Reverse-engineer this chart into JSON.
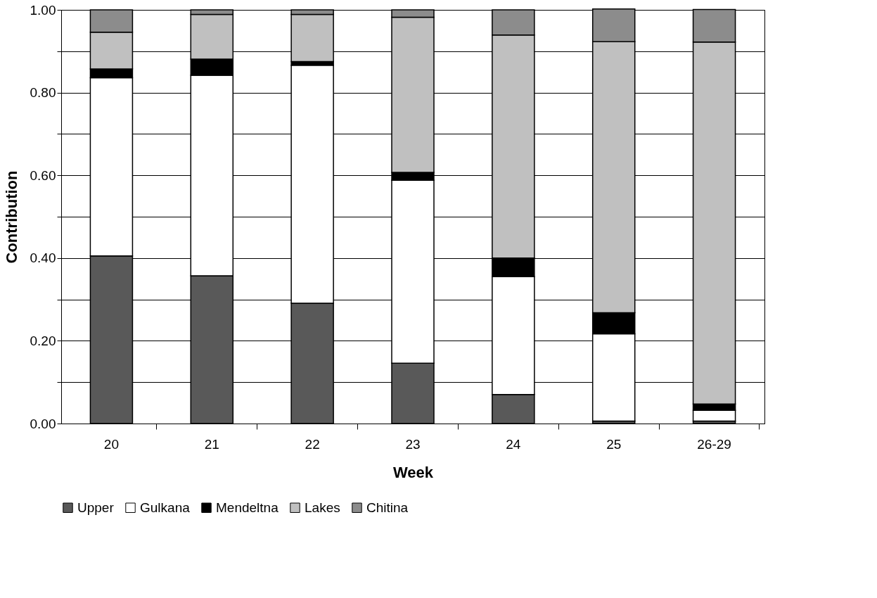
{
  "chart_data": {
    "type": "bar",
    "stacked": true,
    "xlabel": "Week",
    "ylabel": "Contribution",
    "categories": [
      "20",
      "21",
      "22",
      "23",
      "24",
      "25",
      "26-29"
    ],
    "series": [
      {
        "name": "Upper",
        "color": "#595959",
        "values": [
          0.405,
          0.357,
          0.291,
          0.146,
          0.07,
          0.006,
          0.006
        ]
      },
      {
        "name": "Gulkana",
        "color": "#ffffff",
        "values": [
          0.431,
          0.485,
          0.575,
          0.442,
          0.285,
          0.211,
          0.026
        ]
      },
      {
        "name": "Mendeltna",
        "color": "#000000",
        "values": [
          0.021,
          0.039,
          0.009,
          0.019,
          0.045,
          0.051,
          0.015
        ]
      },
      {
        "name": "Lakes",
        "color": "#c0c0c0",
        "values": [
          0.089,
          0.108,
          0.114,
          0.375,
          0.539,
          0.655,
          0.875
        ]
      },
      {
        "name": "Chitina",
        "color": "#8c8c8c",
        "values": [
          0.054,
          0.011,
          0.011,
          0.018,
          0.061,
          0.079,
          0.079
        ]
      }
    ],
    "ylim": [
      0,
      1
    ],
    "yticks": [
      {
        "value": 0,
        "label": "0.00"
      },
      {
        "value": 0.1,
        "label": null
      },
      {
        "value": 0.2,
        "label": "0.20"
      },
      {
        "value": 0.3,
        "label": null
      },
      {
        "value": 0.4,
        "label": "0.40"
      },
      {
        "value": 0.5,
        "label": null
      },
      {
        "value": 0.6,
        "label": "0.60"
      },
      {
        "value": 0.7,
        "label": null
      },
      {
        "value": 0.8,
        "label": "0.80"
      },
      {
        "value": 0.9,
        "label": null
      },
      {
        "value": 1,
        "label": "1.00"
      }
    ],
    "grid": "y",
    "legend": "bottom"
  }
}
